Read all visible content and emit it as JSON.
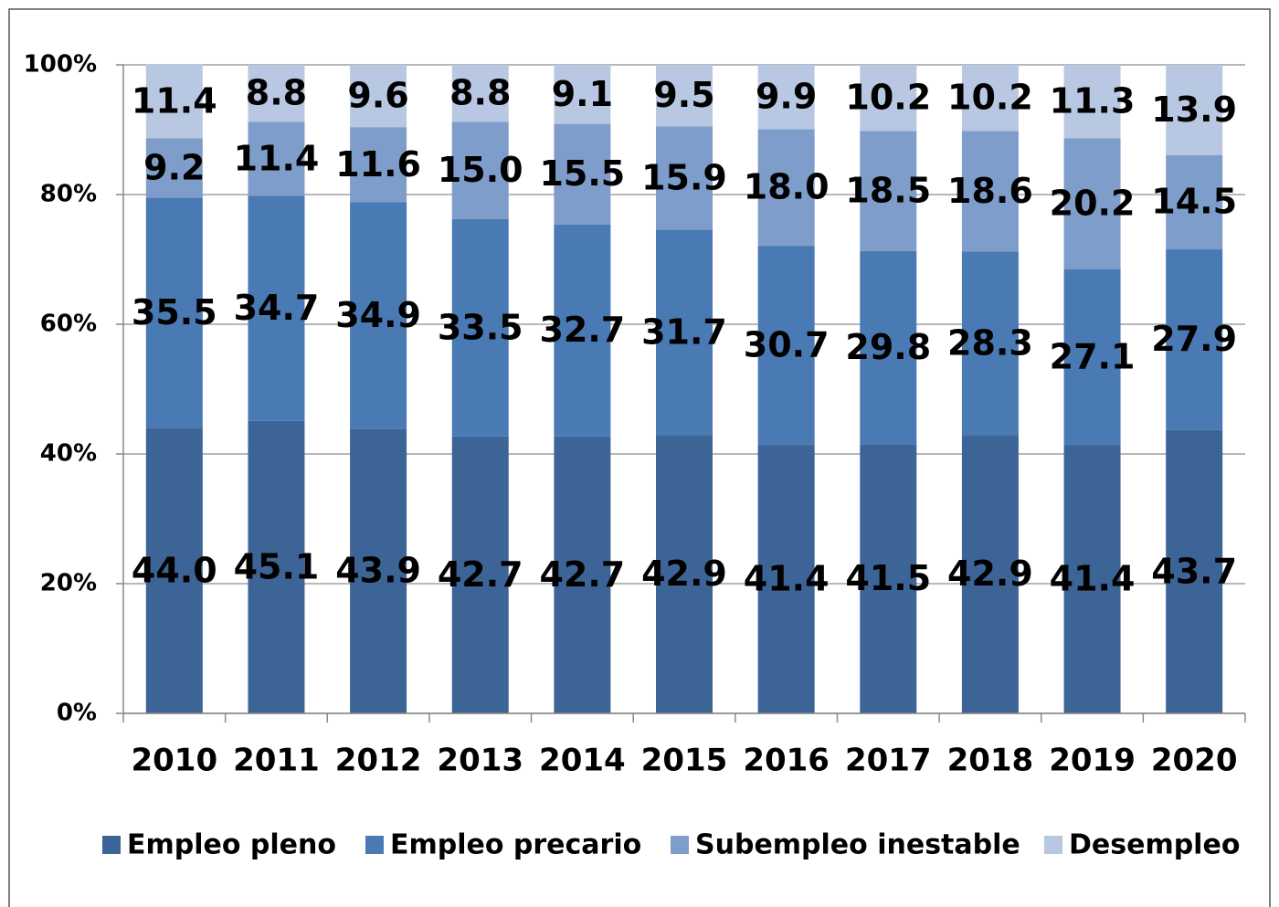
{
  "chart_data": {
    "type": "stacked_bar",
    "categories": [
      "2010",
      "2011",
      "2012",
      "2013",
      "2014",
      "2015",
      "2016",
      "2017",
      "2018",
      "2019",
      "2020"
    ],
    "series": [
      {
        "name": "Empleo pleno",
        "color": "#3d6496",
        "values": [
          44.0,
          45.1,
          43.9,
          42.7,
          42.7,
          42.9,
          41.4,
          41.5,
          42.9,
          41.4,
          43.7
        ],
        "value_labels": [
          "44.0",
          "45.1",
          "43.9",
          "42.7",
          "42.7",
          "42.9",
          "41.4",
          "41.5",
          "42.9",
          "41.4",
          "43.7"
        ]
      },
      {
        "name": "Empleo precario",
        "color": "#4a7ab4",
        "values": [
          35.5,
          34.7,
          34.9,
          33.5,
          32.7,
          31.7,
          30.7,
          29.8,
          28.3,
          27.1,
          27.9
        ],
        "value_labels": [
          "35.5",
          "34.7",
          "34.9",
          "33.5",
          "32.7",
          "31.7",
          "30.7",
          "29.8",
          "28.3",
          "27.1",
          "27.9"
        ]
      },
      {
        "name": "Subempleo inestable",
        "color": "#7f9dca",
        "values": [
          9.2,
          11.4,
          11.6,
          15.0,
          15.5,
          15.9,
          18.0,
          18.5,
          18.6,
          20.2,
          14.5
        ],
        "value_labels": [
          "9.2",
          "11.4",
          "11.6",
          "15.0",
          "15.5",
          "15.9",
          "18.0",
          "18.5",
          "18.6",
          "20.2",
          "14.5"
        ]
      },
      {
        "name": "Desempleo",
        "color": "#b9c8e2",
        "values": [
          11.4,
          8.8,
          9.6,
          8.8,
          9.1,
          9.5,
          9.9,
          10.2,
          10.2,
          11.3,
          13.9
        ],
        "value_labels": [
          "11.4",
          "8.8",
          "9.6",
          "8.8",
          "9.1",
          "9.5",
          "9.9",
          "10.2",
          "10.2",
          "11.3",
          "13.9"
        ]
      }
    ],
    "ylim": [
      0,
      100
    ],
    "yticks": [
      {
        "value": 0,
        "label": "0%"
      },
      {
        "value": 20,
        "label": "20%"
      },
      {
        "value": 40,
        "label": "40%"
      },
      {
        "value": 60,
        "label": "60%"
      },
      {
        "value": 80,
        "label": "80%"
      },
      {
        "value": 100,
        "label": "100%"
      }
    ],
    "grid": true,
    "legend": "bottom"
  }
}
